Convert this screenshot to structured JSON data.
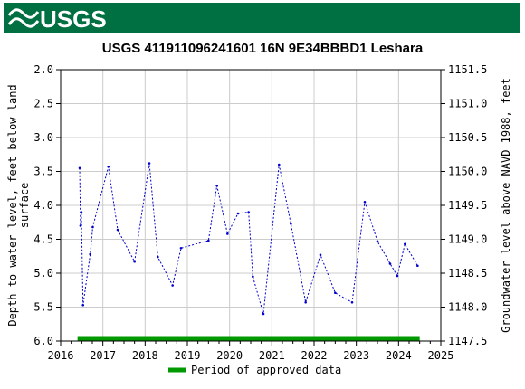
{
  "header": {
    "logo_text": "USGS",
    "brand_color": "#006f41"
  },
  "chart_data": {
    "type": "line",
    "title": "USGS 411911096241601 16N  9E34BBBD1 Leshara",
    "ylabel_left": "Depth to water level, feet below land surface",
    "ylabel_left_lines": [
      "Depth to water level, feet below land",
      "surface"
    ],
    "ylabel_right": "Groundwater level above NAVD 1988, feet",
    "xlim": [
      2016.0,
      2025.0
    ],
    "ylim_left": [
      2.0,
      6.0
    ],
    "ylim_right": [
      1151.5,
      1147.5
    ],
    "x_ticks": [
      "2016",
      "2017",
      "2018",
      "2019",
      "2020",
      "2021",
      "2022",
      "2023",
      "2024",
      "2025"
    ],
    "y_ticks_left": [
      "2.0",
      "2.5",
      "3.0",
      "3.5",
      "4.0",
      "4.5",
      "5.0",
      "5.5",
      "6.0"
    ],
    "y_ticks_right": [
      "1151.5",
      "1151.0",
      "1150.5",
      "1150.0",
      "1149.5",
      "1149.0",
      "1148.5",
      "1148.0",
      "1147.5"
    ],
    "grid": true,
    "series": [
      {
        "name": "",
        "color": "#0000cc",
        "x": [
          2016.45,
          2016.47,
          2016.49,
          2016.53,
          2016.7,
          2016.76,
          2017.13,
          2017.35,
          2017.75,
          2018.1,
          2018.3,
          2018.65,
          2018.85,
          2019.5,
          2019.7,
          2019.95,
          2020.2,
          2020.45,
          2020.55,
          2020.8,
          2021.17,
          2021.45,
          2021.8,
          2022.15,
          2022.5,
          2022.9,
          2023.2,
          2023.5,
          2023.8,
          2023.97,
          2024.15,
          2024.45
        ],
        "y": [
          3.45,
          4.3,
          4.1,
          5.47,
          4.72,
          4.32,
          3.43,
          4.36,
          4.83,
          3.38,
          4.76,
          5.18,
          4.63,
          4.52,
          3.71,
          4.42,
          4.12,
          4.1,
          5.05,
          5.6,
          3.4,
          4.27,
          5.43,
          4.73,
          5.29,
          5.43,
          3.95,
          4.53,
          4.86,
          5.04,
          4.57,
          4.89
        ]
      }
    ],
    "approved_period": {
      "start": 2016.4,
      "end": 2024.5,
      "label": "Period of approved data",
      "color": "#009900"
    },
    "legend_position": "bottom-center"
  }
}
